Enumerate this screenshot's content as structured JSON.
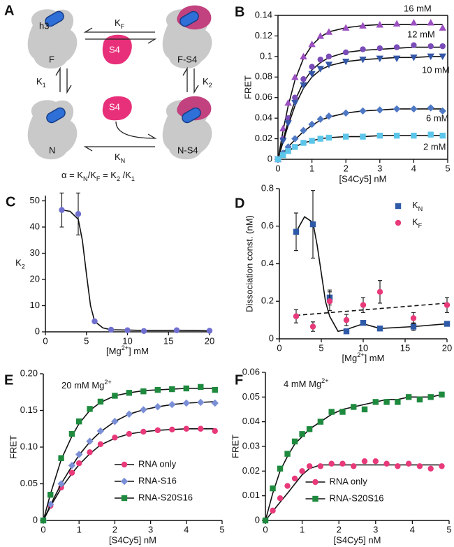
{
  "diagram": {
    "panel": "A",
    "h3": "h3",
    "F": "F",
    "FS4": "F-S4",
    "S4_top": "S4",
    "N": "N",
    "NS4": "N-S4",
    "S4_bottom": "S4",
    "KF": [
      "K",
      {
        "sub": "F"
      }
    ],
    "K1": [
      "K",
      {
        "sub": "1"
      }
    ],
    "K2": [
      "K",
      {
        "sub": "2"
      }
    ],
    "KN": [
      "K",
      {
        "sub": "N"
      }
    ],
    "alpha": [
      "α = K",
      {
        "sub": "N"
      },
      "/K",
      {
        "sub": "F"
      },
      " = K",
      {
        "sub": "2"
      },
      " /K",
      {
        "sub": "1"
      }
    ]
  },
  "chart_data": [
    {
      "type": "scatter",
      "panel": "B",
      "frame": true,
      "xlabel": "[S4Cy5] nM",
      "ylabel": "FRET",
      "legend": "inline",
      "xlim": [
        0,
        5
      ],
      "ylim": [
        0,
        0.14
      ],
      "xticks": [
        0,
        1,
        2,
        3,
        4,
        5
      ],
      "yticks": [
        0,
        0.02,
        0.04,
        0.06,
        0.08,
        0.1,
        0.12,
        0.14
      ],
      "series": [
        {
          "name": "16 mM",
          "color": "#9b4fc0",
          "marker": "triangle",
          "x": [
            0,
            0.15,
            0.3,
            0.5,
            0.75,
            1,
            1.25,
            1.5,
            2,
            2.5,
            3,
            3.5,
            4,
            4.5,
            4.85
          ],
          "values": [
            0,
            0.03,
            0.055,
            0.08,
            0.1,
            0.112,
            0.12,
            0.124,
            0.128,
            0.13,
            0.131,
            0.132,
            0.133,
            0.133,
            0.128
          ],
          "fit": {
            "values": [
              0,
              0.028,
              0.052,
              0.077,
              0.098,
              0.111,
              0.119,
              0.124,
              0.128,
              0.13,
              0.131,
              0.131,
              0.131,
              0.131,
              0.131
            ]
          }
        },
        {
          "name": "12 mM",
          "color": "#7a4cb8",
          "marker": "circle",
          "x": [
            0,
            0.15,
            0.3,
            0.5,
            0.75,
            1,
            1.25,
            1.5,
            2,
            2.5,
            3,
            3.5,
            4,
            4.5,
            4.85
          ],
          "values": [
            0,
            0.02,
            0.04,
            0.06,
            0.078,
            0.09,
            0.097,
            0.1,
            0.104,
            0.107,
            0.108,
            0.109,
            0.111,
            0.11,
            0.11
          ],
          "fit": {
            "values": [
              0,
              0.019,
              0.037,
              0.057,
              0.075,
              0.087,
              0.094,
              0.099,
              0.104,
              0.106,
              0.107,
              0.108,
              0.109,
              0.109,
              0.109
            ]
          }
        },
        {
          "name": "10 mM",
          "color": "#3557a8",
          "marker": "dtriangle",
          "x": [
            0,
            0.15,
            0.3,
            0.5,
            0.75,
            1,
            1.25,
            1.5,
            2,
            2.5,
            3,
            3.5,
            4,
            4.5,
            4.85
          ],
          "values": [
            0,
            0.018,
            0.035,
            0.055,
            0.072,
            0.083,
            0.088,
            0.092,
            0.095,
            0.097,
            0.098,
            0.098,
            0.099,
            0.1,
            0.1
          ],
          "fit": {
            "values": [
              0,
              0.017,
              0.033,
              0.052,
              0.069,
              0.08,
              0.087,
              0.091,
              0.095,
              0.097,
              0.098,
              0.099,
              0.099,
              0.1,
              0.1
            ]
          }
        },
        {
          "name": "6 mM",
          "color": "#4f78c4",
          "marker": "diamond",
          "x": [
            0,
            0.15,
            0.3,
            0.5,
            0.75,
            1,
            1.25,
            1.5,
            2,
            2.5,
            3,
            3.5,
            4,
            4.5,
            4.85
          ],
          "values": [
            0,
            0.006,
            0.012,
            0.02,
            0.028,
            0.034,
            0.039,
            0.042,
            0.045,
            0.047,
            0.048,
            0.049,
            0.049,
            0.05,
            0.047
          ],
          "fit": {
            "values": [
              0,
              0.006,
              0.012,
              0.019,
              0.027,
              0.033,
              0.038,
              0.041,
              0.045,
              0.047,
              0.048,
              0.049,
              0.049,
              0.049,
              0.049
            ]
          }
        },
        {
          "name": "2 mM",
          "color": "#5cc6ea",
          "marker": "square",
          "x": [
            0,
            0.15,
            0.3,
            0.5,
            0.75,
            1,
            1.25,
            1.5,
            2,
            2.5,
            3,
            3.5,
            4,
            4.5,
            4.85
          ],
          "values": [
            0,
            0.004,
            0.008,
            0.012,
            0.016,
            0.018,
            0.02,
            0.021,
            0.022,
            0.022,
            0.023,
            0.023,
            0.023,
            0.024,
            0.023
          ],
          "fit": {
            "values": [
              0,
              0.004,
              0.008,
              0.012,
              0.016,
              0.018,
              0.02,
              0.021,
              0.022,
              0.022,
              0.023,
              0.023,
              0.023,
              0.023,
              0.023
            ]
          }
        }
      ]
    },
    {
      "type": "scatter",
      "panel": "C",
      "xlabel": [
        "[Mg",
        {
          "sup": "2+"
        },
        "] mM"
      ],
      "ylabel": [
        "K",
        {
          "sub": "2"
        }
      ],
      "xlim": [
        0,
        20
      ],
      "ylim": [
        0,
        52
      ],
      "xticks": [
        0,
        5,
        10,
        15,
        20
      ],
      "yticks": [
        0,
        10,
        20,
        30,
        40,
        50
      ],
      "series": [
        {
          "color": "#6f6fd0",
          "marker": "circle",
          "x": [
            2,
            4,
            6,
            8,
            10,
            12,
            16,
            20
          ],
          "values": [
            46.5,
            45,
            4,
            0.8,
            0.6,
            0.3,
            0.6,
            0.4
          ],
          "errors": [
            6.5,
            8,
            null,
            null,
            null,
            null,
            null,
            null
          ],
          "fit": {
            "x": [
              2,
              3,
              4,
              4.5,
              5,
              5.5,
              6,
              7,
              8,
              10,
              12,
              14,
              16,
              18,
              20
            ],
            "values": [
              46.5,
              46,
              43,
              35,
              22,
              10,
              4,
              1.5,
              0.8,
              0.7,
              0.5,
              0.5,
              0.6,
              0.5,
              0.4
            ]
          }
        }
      ]
    },
    {
      "type": "scatter",
      "panel": "D",
      "xlabel": [
        "[Mg",
        {
          "sup": "2+"
        },
        "] mM"
      ],
      "ylabel": "Dissociation const. (nM)",
      "legend": "upper right",
      "xlim": [
        0,
        20
      ],
      "ylim": [
        0,
        0.8
      ],
      "xticks": [
        0,
        5,
        10,
        15,
        20
      ],
      "yticks": [
        0,
        0.2,
        0.4,
        0.6,
        0.8
      ],
      "series": [
        {
          "name": [
            "K",
            {
              "sub": "N"
            }
          ],
          "color": "#2f5aa8",
          "marker": "square",
          "x": [
            2,
            4,
            6,
            8,
            10,
            12,
            16,
            20
          ],
          "values": [
            0.57,
            0.61,
            0.22,
            0.04,
            0.085,
            0.055,
            0.065,
            0.08
          ],
          "errors": [
            0.1,
            0.18,
            0.04,
            null,
            0.01,
            null,
            0.02,
            0.01
          ],
          "fit": {
            "x": [
              2,
              3,
              4,
              4.5,
              5,
              5.5,
              6,
              7,
              8,
              10,
              12,
              16,
              20
            ],
            "values": [
              0.57,
              0.65,
              0.62,
              0.5,
              0.35,
              0.2,
              0.12,
              0.04,
              0.05,
              0.08,
              0.055,
              0.065,
              0.08
            ]
          }
        },
        {
          "name": [
            "K",
            {
              "sub": "F"
            }
          ],
          "color": "#e8397a",
          "marker": "circle",
          "x": [
            2,
            4,
            6,
            8,
            10,
            12,
            16,
            20
          ],
          "values": [
            0.12,
            0.065,
            0.2,
            0.1,
            0.18,
            0.25,
            0.11,
            0.18
          ],
          "errors": [
            0.035,
            0.025,
            0.05,
            0.03,
            0.04,
            0.06,
            0.03,
            0.04
          ],
          "fit": {
            "x": [
              2,
              20
            ],
            "values": [
              0.125,
              0.19
            ],
            "dashed": true
          }
        }
      ]
    },
    {
      "type": "scatter",
      "panel": "E",
      "xlabel": "[S4Cy5] nM",
      "ylabel": "FRET",
      "legend": "lower right",
      "legend_lines": true,
      "annotation": [
        "20 mM Mg",
        {
          "sup": "2+"
        }
      ],
      "xlim": [
        0,
        5
      ],
      "ylim": [
        0,
        0.2
      ],
      "xticks": [
        0,
        1,
        2,
        3,
        4,
        5
      ],
      "yticks": [
        0,
        0.05,
        {
          "value": 0.1,
          "label": "0.10"
        },
        0.15,
        {
          "value": 0.2,
          "label": "0.20"
        }
      ],
      "series": [
        {
          "name": "RNA only",
          "color": "#e8397a",
          "marker": "circle",
          "x": [
            0,
            0.2,
            0.5,
            0.8,
            1,
            1.3,
            1.6,
            2,
            2.4,
            2.8,
            3.2,
            3.6,
            4,
            4.4,
            4.8
          ],
          "values": [
            0,
            0.02,
            0.045,
            0.065,
            0.078,
            0.093,
            0.104,
            0.113,
            0.118,
            0.121,
            0.123,
            0.124,
            0.125,
            0.125,
            0.122
          ],
          "fit": {
            "values": [
              0,
              0.019,
              0.044,
              0.064,
              0.076,
              0.091,
              0.103,
              0.112,
              0.118,
              0.121,
              0.123,
              0.124,
              0.125,
              0.125,
              0.125
            ]
          }
        },
        {
          "name": "RNA-S16",
          "color": "#7b8fd6",
          "marker": "diamond",
          "x": [
            0,
            0.2,
            0.5,
            0.8,
            1,
            1.3,
            1.6,
            2,
            2.4,
            2.8,
            3.2,
            3.6,
            4,
            4.4,
            4.8
          ],
          "values": [
            0,
            0.022,
            0.05,
            0.075,
            0.09,
            0.108,
            0.122,
            0.135,
            0.145,
            0.151,
            0.155,
            0.158,
            0.16,
            0.161,
            0.16
          ],
          "fit": {
            "values": [
              0,
              0.021,
              0.05,
              0.074,
              0.089,
              0.107,
              0.121,
              0.135,
              0.145,
              0.151,
              0.155,
              0.158,
              0.16,
              0.161,
              0.162
            ]
          }
        },
        {
          "name": "RNA-S20S16",
          "color": "#1e8a3e",
          "marker": "square",
          "x": [
            0,
            0.2,
            0.5,
            0.8,
            1,
            1.3,
            1.6,
            2,
            2.4,
            2.8,
            3.2,
            3.6,
            4,
            4.4,
            4.8
          ],
          "values": [
            0,
            0.035,
            0.085,
            0.118,
            0.135,
            0.152,
            0.162,
            0.17,
            0.174,
            0.176,
            0.178,
            0.179,
            0.18,
            0.182,
            0.178
          ],
          "fit": {
            "values": [
              0,
              0.036,
              0.083,
              0.115,
              0.132,
              0.15,
              0.161,
              0.17,
              0.174,
              0.177,
              0.178,
              0.179,
              0.18,
              0.18,
              0.18
            ]
          }
        }
      ]
    },
    {
      "type": "scatter",
      "panel": "F",
      "xlabel": "[S4Cy5] nM",
      "ylabel": "FRET",
      "legend": "lower center",
      "legend_lines": true,
      "annotation": [
        "4 mM Mg",
        {
          "sup": "2+"
        }
      ],
      "xlim": [
        0,
        5
      ],
      "ylim": [
        0,
        0.06
      ],
      "xticks": [
        0,
        1,
        2,
        3,
        4,
        5
      ],
      "yticks": [
        0,
        0.01,
        0.02,
        0.03,
        0.04,
        0.05,
        0.06
      ],
      "series": [
        {
          "name": "RNA only",
          "color": "#e8397a",
          "marker": "circle",
          "x": [
            0,
            0.2,
            0.4,
            0.6,
            0.8,
            1,
            1.2,
            1.5,
            1.8,
            2.1,
            2.4,
            2.7,
            3,
            3.3,
            3.6,
            3.9,
            4.2,
            4.5,
            4.8
          ],
          "values": [
            0,
            0.004,
            0.009,
            0.014,
            0.017,
            0.02,
            0.022,
            0.022,
            0.023,
            0.023,
            0.022,
            0.024,
            0.024,
            0.023,
            0.022,
            0.023,
            0.022,
            0.021,
            0.022
          ],
          "fit": {
            "values": [
              0,
              0.0037,
              0.0074,
              0.011,
              0.0148,
              0.0185,
              0.021,
              0.0225,
              0.0225,
              0.0225,
              0.0225,
              0.0225,
              0.0225,
              0.0225,
              0.0225,
              0.0225,
              0.0225,
              0.0225,
              0.0225
            ]
          }
        },
        {
          "name": "RNA-S20S16",
          "color": "#1e8a3e",
          "marker": "square",
          "x": [
            0,
            0.2,
            0.4,
            0.6,
            0.8,
            1,
            1.2,
            1.5,
            1.8,
            2.1,
            2.4,
            2.7,
            3,
            3.3,
            3.6,
            3.9,
            4.2,
            4.5,
            4.8
          ],
          "values": [
            0,
            0.013,
            0.021,
            0.027,
            0.032,
            0.035,
            0.037,
            0.04,
            0.044,
            0.044,
            0.046,
            0.045,
            0.048,
            0.048,
            0.048,
            0.05,
            0.049,
            0.05,
            0.051
          ],
          "fit": {
            "values": [
              0,
              0.011,
              0.02,
              0.026,
              0.031,
              0.034,
              0.037,
              0.04,
              0.043,
              0.045,
              0.046,
              0.047,
              0.048,
              0.049,
              0.049,
              0.05,
              0.05,
              0.05,
              0.051
            ]
          }
        }
      ]
    }
  ]
}
